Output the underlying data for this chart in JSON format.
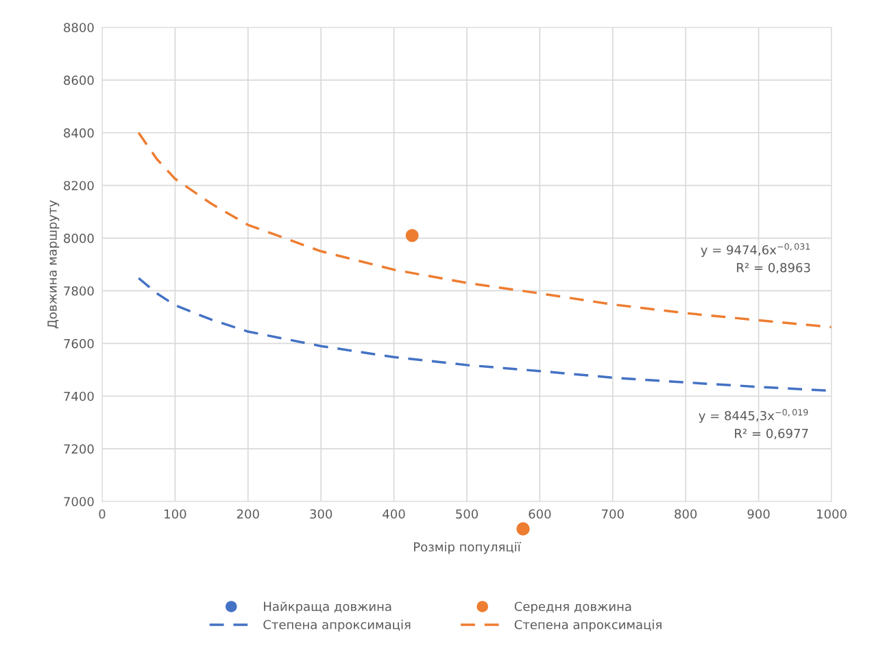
{
  "chart_data": {
    "type": "scatter",
    "xlabel": "Розмір популяції",
    "ylabel": "Довжина маршруту",
    "xlim": [
      0,
      1000
    ],
    "xticks": [
      0,
      100,
      200,
      300,
      400,
      500,
      600,
      700,
      800,
      900,
      1000
    ],
    "ylim": [
      7000,
      8800
    ],
    "yticks": [
      7000,
      7200,
      7400,
      7600,
      7800,
      8000,
      8200,
      8400,
      8600,
      8800
    ],
    "grid": true,
    "legend": "bottom",
    "series": [
      {
        "name": "Найкраща довжина",
        "color": "#4472c4",
        "marker": "circle"
      },
      {
        "name": "Середня довжина",
        "color": "#ed7d31",
        "marker": "circle",
        "x": [
          425
        ],
        "values": [
          8010
        ]
      },
      {
        "name": "Степена апроксимація",
        "type": "line",
        "line_style": "dashed",
        "color": "#4472c4",
        "x": [
          50,
          75,
          100,
          150,
          200,
          300,
          400,
          500,
          600,
          700,
          800,
          900,
          1000
        ],
        "values": [
          7848,
          7790,
          7745,
          7690,
          7645,
          7590,
          7548,
          7518,
          7495,
          7470,
          7452,
          7435,
          7420
        ]
      },
      {
        "name": "Степена апроксимація",
        "type": "line",
        "line_style": "dashed",
        "color": "#ed7d31",
        "x": [
          50,
          75,
          100,
          150,
          200,
          300,
          400,
          500,
          600,
          700,
          800,
          900,
          1000
        ],
        "values": [
          8400,
          8300,
          8225,
          8130,
          8050,
          7950,
          7880,
          7830,
          7790,
          7748,
          7715,
          7688,
          7662
        ]
      }
    ],
    "annotations": [
      "y = 9474,6x$^{−0,031}$\nR² = 0,8963",
      "y = 8445,3x$^{−0,019}$\nR² = 0,6977"
    ]
  }
}
